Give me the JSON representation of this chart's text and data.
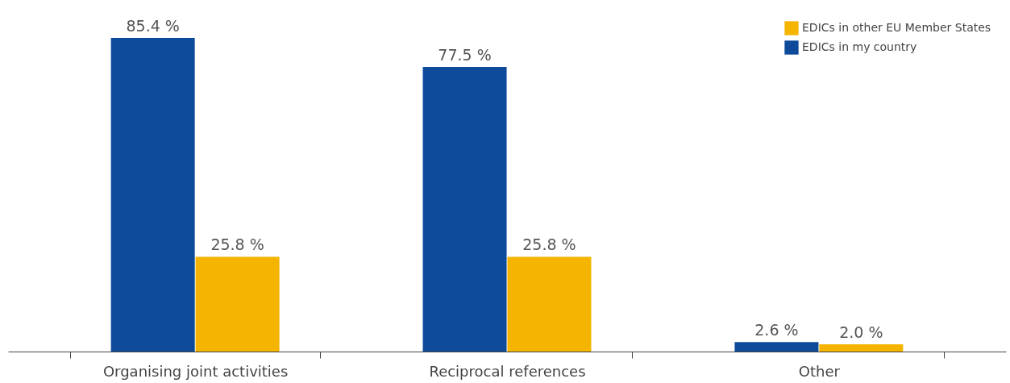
{
  "chart_data": {
    "type": "bar",
    "categories": [
      "Organising joint activities",
      "Reciprocal references",
      "Other"
    ],
    "series": [
      {
        "name": "EDICs in my country",
        "color": "#0d4a9a",
        "values": [
          85.4,
          77.5,
          2.6
        ],
        "value_labels": [
          "85.4 %",
          "77.5 %",
          "2.6 %"
        ]
      },
      {
        "name": "EDICs in other EU Member States",
        "color": "#f5b400",
        "values": [
          25.8,
          25.8,
          2.0
        ],
        "value_labels": [
          "25.8 %",
          "25.8 %",
          "2.0 %"
        ]
      }
    ],
    "legend": "top right",
    "grid": false,
    "tick_labels": "x"
  }
}
